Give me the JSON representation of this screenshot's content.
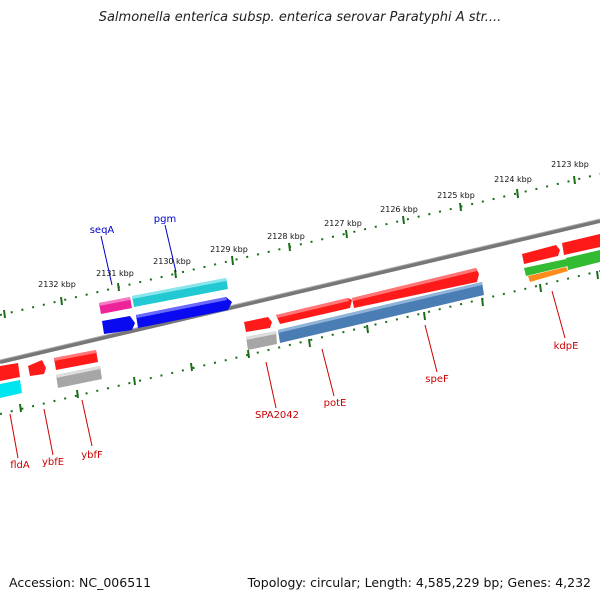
{
  "title": "Salmonella enterica subsp. enterica serovar Paratyphi A str....",
  "footer": {
    "accession": "Accession: NC_006511",
    "summary": "Topology: circular; Length: 4,585,229 bp; Genes: 4,232"
  },
  "colors": {
    "backbone": "#777777",
    "tick": "#1a6e1a",
    "gene_label_forward": "#0000cc",
    "gene_label_reverse": "#cc0000",
    "red": "#ff1a1a",
    "magenta": "#ee2299",
    "cyan": "#22c8d2",
    "blue": "#0a0af0",
    "steelblue": "#4a7db4",
    "grey": "#a6a6a6",
    "green": "#33bb33",
    "orange": "#ff8c1a",
    "aqua": "#00e6f0"
  },
  "kbp_scale": [
    {
      "label": "2123 kbp"
    },
    {
      "label": "2124 kbp"
    },
    {
      "label": "2125 kbp"
    },
    {
      "label": "2126 kbp"
    },
    {
      "label": "2127 kbp"
    },
    {
      "label": "2128 kbp"
    },
    {
      "label": "2129 kbp"
    },
    {
      "label": "2130 kbp"
    },
    {
      "label": "2131 kbp"
    },
    {
      "label": "2132 kbp"
    }
  ],
  "gene_labels": [
    {
      "name": "seqA",
      "strand": "forward"
    },
    {
      "name": "pgm",
      "strand": "forward"
    },
    {
      "name": "kdpE",
      "strand": "reverse"
    },
    {
      "name": "speF",
      "strand": "reverse"
    },
    {
      "name": "potE",
      "strand": "reverse"
    },
    {
      "name": "SPA2042",
      "strand": "reverse"
    },
    {
      "name": "ybfF",
      "strand": "reverse"
    },
    {
      "name": "ybfE",
      "strand": "reverse"
    },
    {
      "name": "fldA",
      "strand": "reverse"
    }
  ]
}
